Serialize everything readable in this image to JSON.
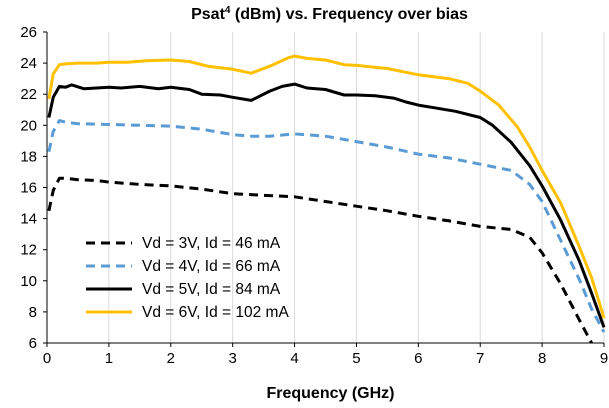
{
  "chart_data": {
    "type": "line",
    "title_main": "Psat",
    "title_sup": "4",
    "title_rest": " (dBm) vs. Frequency over bias",
    "xlabel": "Frequency (GHz)",
    "ylabel": "",
    "xlim": [
      0,
      9
    ],
    "ylim": [
      6,
      26
    ],
    "xticks": [
      0,
      1,
      2,
      3,
      4,
      5,
      6,
      7,
      8,
      9
    ],
    "yticks": [
      6,
      8,
      10,
      12,
      14,
      16,
      18,
      20,
      22,
      24,
      26
    ],
    "grid": "vertical",
    "legend_position": "bottom-left",
    "series": [
      {
        "name": "Vd = 3V, Id = 46 mA",
        "color": "#000000",
        "dash": "dashed",
        "x": [
          0.03,
          0.1,
          0.2,
          0.3,
          0.5,
          0.8,
          1.0,
          1.5,
          2.0,
          2.5,
          3.0,
          3.5,
          4.0,
          4.5,
          5.0,
          5.5,
          6.0,
          6.5,
          7.0,
          7.5,
          7.8,
          8.0,
          8.3,
          8.6,
          8.8
        ],
        "y": [
          14.5,
          15.8,
          16.6,
          16.6,
          16.5,
          16.45,
          16.35,
          16.2,
          16.1,
          15.9,
          15.6,
          15.5,
          15.4,
          15.1,
          14.8,
          14.5,
          14.15,
          13.85,
          13.5,
          13.3,
          12.8,
          11.8,
          9.8,
          7.5,
          6.0
        ]
      },
      {
        "name": "Vd = 4V, Id = 66 mA",
        "color": "#5b9bd5",
        "dash": "dashed",
        "x": [
          0.03,
          0.1,
          0.2,
          0.3,
          0.5,
          1.0,
          1.5,
          2.0,
          2.5,
          3.0,
          3.3,
          3.6,
          4.0,
          4.5,
          5.0,
          5.5,
          6.0,
          6.5,
          7.0,
          7.5,
          7.8,
          8.0,
          8.3,
          8.6,
          8.8,
          9.0
        ],
        "y": [
          18.3,
          19.6,
          20.3,
          20.2,
          20.1,
          20.05,
          20.0,
          19.95,
          19.75,
          19.4,
          19.3,
          19.3,
          19.45,
          19.3,
          18.95,
          18.6,
          18.15,
          17.9,
          17.5,
          17.1,
          16.2,
          15.1,
          12.6,
          10.1,
          8.2,
          6.7
        ]
      },
      {
        "name": "Vd = 5V, Id = 84 mA",
        "color": "#000000",
        "dash": "solid",
        "x": [
          0.03,
          0.1,
          0.2,
          0.3,
          0.4,
          0.6,
          0.8,
          1.0,
          1.2,
          1.5,
          1.8,
          2.0,
          2.3,
          2.5,
          2.8,
          3.0,
          3.3,
          3.6,
          3.8,
          4.0,
          4.2,
          4.5,
          4.8,
          5.0,
          5.3,
          5.6,
          5.8,
          6.0,
          6.3,
          6.6,
          7.0,
          7.2,
          7.5,
          7.8,
          8.0,
          8.3,
          8.6,
          8.8,
          9.0
        ],
        "y": [
          20.5,
          21.8,
          22.5,
          22.45,
          22.6,
          22.35,
          22.4,
          22.45,
          22.4,
          22.5,
          22.35,
          22.45,
          22.3,
          22.0,
          21.95,
          21.8,
          21.6,
          22.2,
          22.5,
          22.65,
          22.4,
          22.3,
          21.95,
          21.95,
          21.9,
          21.75,
          21.5,
          21.3,
          21.1,
          20.9,
          20.5,
          20.0,
          18.9,
          17.4,
          16.1,
          13.9,
          11.3,
          9.2,
          7.0
        ]
      },
      {
        "name": "Vd = 6V, Id = 102 mA",
        "color": "#ffc000",
        "dash": "solid",
        "x": [
          0.03,
          0.1,
          0.2,
          0.3,
          0.5,
          0.8,
          1.0,
          1.3,
          1.6,
          2.0,
          2.3,
          2.6,
          3.0,
          3.3,
          3.6,
          3.9,
          4.0,
          4.2,
          4.5,
          4.8,
          5.0,
          5.5,
          6.0,
          6.5,
          6.8,
          7.0,
          7.3,
          7.6,
          7.8,
          8.0,
          8.3,
          8.6,
          8.8,
          9.0
        ],
        "y": [
          21.7,
          23.3,
          23.9,
          23.95,
          24.0,
          24.0,
          24.05,
          24.05,
          24.15,
          24.2,
          24.1,
          23.8,
          23.6,
          23.35,
          23.8,
          24.35,
          24.45,
          24.3,
          24.2,
          23.9,
          23.85,
          23.65,
          23.25,
          23.0,
          22.7,
          22.2,
          21.3,
          19.9,
          18.6,
          17.1,
          15.0,
          12.2,
          10.2,
          7.6
        ]
      }
    ]
  }
}
